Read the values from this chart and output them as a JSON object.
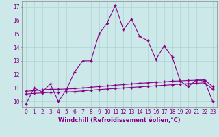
{
  "title": "",
  "xlabel": "Windchill (Refroidissement éolien,°C)",
  "ylabel": "",
  "background_color": "#cce8e8",
  "line_color": "#880088",
  "xmin": -0.5,
  "xmax": 23.5,
  "ymin": 9.6,
  "ymax": 17.4,
  "yticks": [
    10,
    11,
    12,
    13,
    14,
    15,
    16,
    17
  ],
  "xticks": [
    0,
    1,
    2,
    3,
    4,
    5,
    6,
    7,
    8,
    9,
    10,
    11,
    12,
    13,
    14,
    15,
    16,
    17,
    18,
    19,
    20,
    21,
    22,
    23
  ],
  "main_line_x": [
    0,
    1,
    2,
    3,
    4,
    5,
    6,
    7,
    8,
    9,
    10,
    11,
    12,
    13,
    14,
    15,
    16,
    17,
    18,
    19,
    20,
    21,
    22,
    23
  ],
  "main_line_y": [
    9.8,
    11.0,
    10.7,
    11.3,
    10.0,
    10.9,
    12.2,
    13.0,
    13.0,
    15.0,
    15.8,
    17.1,
    15.3,
    16.1,
    14.8,
    14.5,
    13.1,
    14.1,
    13.3,
    11.5,
    11.1,
    11.6,
    11.5,
    10.0
  ],
  "flat_line1_x": [
    0,
    1,
    2,
    3,
    4,
    5,
    6,
    7,
    8,
    9,
    10,
    11,
    12,
    13,
    14,
    15,
    16,
    17,
    18,
    19,
    20,
    21,
    22,
    23
  ],
  "flat_line1_y": [
    10.75,
    10.8,
    10.85,
    10.9,
    10.9,
    10.92,
    10.95,
    11.0,
    11.05,
    11.1,
    11.15,
    11.2,
    11.25,
    11.3,
    11.35,
    11.38,
    11.42,
    11.45,
    11.5,
    11.52,
    11.55,
    11.57,
    11.6,
    11.1
  ],
  "flat_line2_x": [
    0,
    1,
    2,
    3,
    4,
    5,
    6,
    7,
    8,
    9,
    10,
    11,
    12,
    13,
    14,
    15,
    16,
    17,
    18,
    19,
    20,
    21,
    22,
    23
  ],
  "flat_line2_y": [
    10.55,
    10.6,
    10.63,
    10.67,
    10.68,
    10.7,
    10.73,
    10.78,
    10.82,
    10.88,
    10.92,
    10.96,
    11.0,
    11.04,
    11.08,
    11.12,
    11.16,
    11.2,
    11.24,
    11.28,
    11.32,
    11.35,
    11.38,
    10.9
  ],
  "grid_color": "#aad4d4",
  "xlabel_fontsize": 6.0,
  "tick_fontsize": 5.5
}
